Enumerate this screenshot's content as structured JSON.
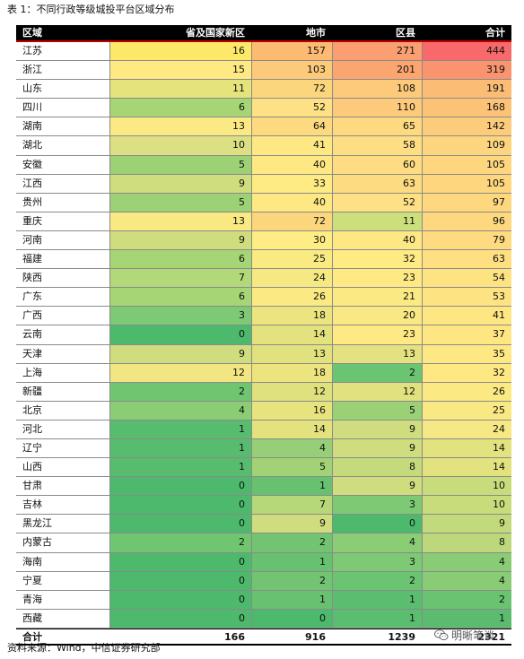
{
  "caption": "表 1：不同行政等级城投平台区域分布",
  "headers": [
    "区域",
    "省及国家新区",
    "地市",
    "区县",
    "合计"
  ],
  "rows": [
    {
      "region": "江苏",
      "values": [
        16,
        157,
        271,
        444
      ],
      "colors": [
        "#fde969",
        "#fcba72",
        "#f99f71",
        "#f8696b"
      ]
    },
    {
      "region": "浙江",
      "values": [
        15,
        103,
        201,
        319
      ],
      "colors": [
        "#fee983",
        "#fdca7a",
        "#fba571",
        "#f9946f"
      ]
    },
    {
      "region": "山东",
      "values": [
        11,
        72,
        108,
        191
      ],
      "colors": [
        "#e5e37c",
        "#fcd67d",
        "#fdc97a",
        "#fbbc76"
      ]
    },
    {
      "region": "四川",
      "values": [
        6,
        52,
        110,
        168
      ],
      "colors": [
        "#a5d574",
        "#fee184",
        "#fdc97a",
        "#fcc377"
      ]
    },
    {
      "region": "湖南",
      "values": [
        13,
        64,
        65,
        142
      ],
      "colors": [
        "#fbe983",
        "#fdda80",
        "#fdda80",
        "#fccc7b"
      ]
    },
    {
      "region": "湖北",
      "values": [
        10,
        41,
        58,
        109
      ],
      "colors": [
        "#dce082",
        "#fee884",
        "#fdde82",
        "#fdd57e"
      ]
    },
    {
      "region": "安徽",
      "values": [
        5,
        40,
        60,
        105
      ],
      "colors": [
        "#9cd175",
        "#fee884",
        "#fedc81",
        "#fdd67e"
      ]
    },
    {
      "region": "江西",
      "values": [
        9,
        33,
        63,
        105
      ],
      "colors": [
        "#cfdd7e",
        "#feeb84",
        "#fddb80",
        "#fdd67e"
      ]
    },
    {
      "region": "贵州",
      "values": [
        5,
        40,
        52,
        97
      ],
      "colors": [
        "#9cd175",
        "#fee884",
        "#fee184",
        "#fdd87f"
      ]
    },
    {
      "region": "重庆",
      "values": [
        13,
        72,
        11,
        96
      ],
      "colors": [
        "#f8e983",
        "#fcd67d",
        "#cbdf7d",
        "#fdd87f"
      ]
    },
    {
      "region": "河南",
      "values": [
        9,
        30,
        40,
        79
      ],
      "colors": [
        "#cfdd7e",
        "#feec84",
        "#fee884",
        "#feda80"
      ]
    },
    {
      "region": "福建",
      "values": [
        6,
        25,
        32,
        63
      ],
      "colors": [
        "#a5d574",
        "#f9ea83",
        "#feeb84",
        "#fedf82"
      ]
    },
    {
      "region": "陕西",
      "values": [
        7,
        24,
        23,
        54
      ],
      "colors": [
        "#b1d879",
        "#f6e983",
        "#fee984",
        "#fee383"
      ]
    },
    {
      "region": "广东",
      "values": [
        6,
        26,
        21,
        53
      ],
      "colors": [
        "#a5d574",
        "#fbea83",
        "#fbea84",
        "#fee383"
      ]
    },
    {
      "region": "广西",
      "values": [
        3,
        18,
        20,
        41
      ],
      "colors": [
        "#7dc974",
        "#ece57f",
        "#fae884",
        "#fee683"
      ]
    },
    {
      "region": "云南",
      "values": [
        0,
        14,
        23,
        37
      ],
      "colors": [
        "#4db96c",
        "#e4e27e",
        "#fee984",
        "#fee783"
      ]
    },
    {
      "region": "天津",
      "values": [
        9,
        13,
        13,
        35
      ],
      "colors": [
        "#cfdd7e",
        "#e1e17e",
        "#e4e280",
        "#fee883"
      ]
    },
    {
      "region": "上海",
      "values": [
        12,
        18,
        2,
        32
      ],
      "colors": [
        "#f2e683",
        "#ece57f",
        "#6ac471",
        "#fee883"
      ]
    },
    {
      "region": "新疆",
      "values": [
        2,
        12,
        12,
        26
      ],
      "colors": [
        "#70c571",
        "#dfe07e",
        "#e1e17f",
        "#fbe983"
      ]
    },
    {
      "region": "北京",
      "values": [
        4,
        16,
        5,
        25
      ],
      "colors": [
        "#8acd75",
        "#e7e37f",
        "#9bd176",
        "#f9e984"
      ]
    },
    {
      "region": "河北",
      "values": [
        1,
        14,
        9,
        24
      ],
      "colors": [
        "#58bc6e",
        "#e4e27e",
        "#cfdd7e",
        "#f6e884"
      ]
    },
    {
      "region": "辽宁",
      "values": [
        1,
        4,
        9,
        14
      ],
      "colors": [
        "#58bc6e",
        "#96cf77",
        "#cfdd7e",
        "#e2e27e"
      ]
    },
    {
      "region": "山西",
      "values": [
        1,
        5,
        8,
        14
      ],
      "colors": [
        "#58bc6e",
        "#a1d376",
        "#c4da7c",
        "#e2e27e"
      ]
    },
    {
      "region": "甘肃",
      "values": [
        0,
        1,
        9,
        10
      ],
      "colors": [
        "#4db96c",
        "#67c170",
        "#cfdd7e",
        "#c9dc7c"
      ]
    },
    {
      "region": "吉林",
      "values": [
        0,
        7,
        3,
        10
      ],
      "colors": [
        "#4db96c",
        "#b7d879",
        "#7dc974",
        "#c9dc7c"
      ]
    },
    {
      "region": "黑龙江",
      "values": [
        0,
        9,
        0,
        9
      ],
      "colors": [
        "#4db96c",
        "#cfdd7e",
        "#4db96c",
        "#c3da7c"
      ]
    },
    {
      "region": "内蒙古",
      "values": [
        2,
        2,
        4,
        8
      ],
      "colors": [
        "#70c571",
        "#72c472",
        "#8acd75",
        "#bdd87b"
      ]
    },
    {
      "region": "海南",
      "values": [
        0,
        1,
        3,
        4
      ],
      "colors": [
        "#4db96c",
        "#67c170",
        "#7dc974",
        "#89cc75"
      ]
    },
    {
      "region": "宁夏",
      "values": [
        0,
        2,
        2,
        4
      ],
      "colors": [
        "#4db96c",
        "#72c472",
        "#6ac471",
        "#89cc75"
      ]
    },
    {
      "region": "青海",
      "values": [
        0,
        1,
        1,
        2
      ],
      "colors": [
        "#4db96c",
        "#67c170",
        "#5bbd6f",
        "#6ac371"
      ]
    },
    {
      "region": "西藏",
      "values": [
        0,
        0,
        1,
        1
      ],
      "colors": [
        "#4db96c",
        "#4db96c",
        "#5bbd6f",
        "#5bbb6e"
      ]
    }
  ],
  "total": {
    "label": "合计",
    "values": [
      "166",
      "916",
      "1239",
      "2321"
    ]
  },
  "source": "资料来源：Wind，中信证券研究部",
  "watermark": {
    "text": "明晰笔谈",
    "icon": "wechat-icon"
  }
}
